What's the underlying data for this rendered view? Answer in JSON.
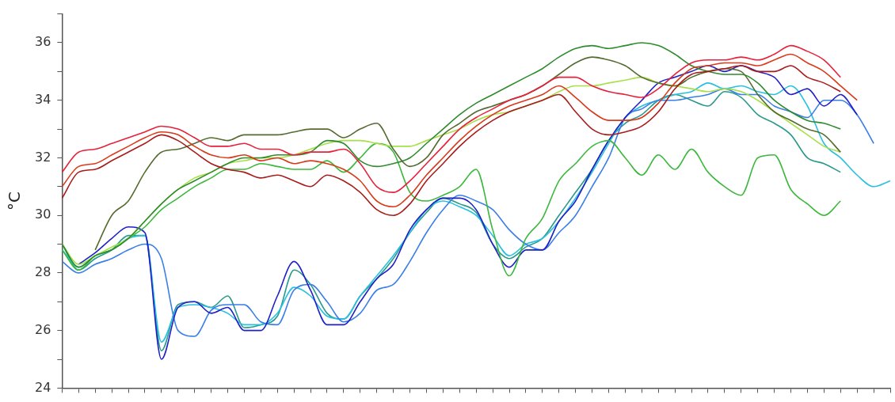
{
  "chart_data": {
    "type": "line",
    "ylabel": "°C",
    "categories": [
      null,
      null,
      null,
      null,
      null,
      null,
      null,
      null,
      null,
      null,
      null,
      null,
      null,
      null,
      null,
      null,
      null,
      null,
      null,
      null,
      null,
      null,
      null,
      null,
      null,
      null,
      null,
      null,
      null,
      null,
      null,
      null,
      null,
      null,
      null,
      null,
      null,
      null,
      null,
      null,
      null,
      null,
      null,
      null,
      null,
      null,
      null,
      null,
      null,
      null,
      null
    ],
    "ylim": [
      24,
      37
    ],
    "yticks": [
      24,
      {
        "value": 25,
        "label": null
      },
      26,
      {
        "value": 27,
        "label": null
      },
      28,
      {
        "value": 29,
        "label": null
      },
      30,
      {
        "value": 31,
        "label": null
      },
      32,
      {
        "value": 33,
        "label": null
      },
      34,
      {
        "value": 35,
        "label": null
      },
      36,
      {
        "value": 37,
        "label": null
      }
    ],
    "tick_labels": "y",
    "grid": false,
    "marker": "none",
    "series": [
      {
        "color": "#e8203a",
        "values": [
          31.5,
          32.2,
          32.3,
          32.5,
          32.7,
          32.9,
          33.1,
          33.0,
          32.7,
          32.4,
          32.4,
          32.5,
          32.3,
          32.3,
          32.1,
          32.2,
          32.2,
          32.3,
          31.8,
          31.0,
          30.8,
          31.2,
          31.8,
          32.4,
          33.0,
          33.4,
          33.7,
          34.0,
          34.2,
          34.5,
          34.8,
          34.8,
          34.5,
          34.3,
          34.2,
          34.1,
          34.4,
          34.9,
          35.3,
          35.4,
          35.4,
          35.5,
          35.4,
          35.6,
          35.9,
          35.7,
          35.4,
          34.8,
          null,
          null,
          null
        ]
      },
      {
        "color": "#d93a1a",
        "values": [
          31.0,
          31.7,
          31.8,
          32.1,
          32.4,
          32.7,
          32.9,
          32.8,
          32.4,
          32.1,
          32.0,
          32.1,
          31.9,
          32.0,
          31.8,
          31.9,
          31.8,
          31.6,
          31.2,
          30.5,
          30.3,
          30.7,
          31.4,
          32.0,
          32.6,
          33.1,
          33.5,
          33.8,
          34.0,
          34.2,
          34.5,
          34.1,
          33.6,
          33.3,
          33.3,
          33.4,
          33.9,
          34.6,
          35.1,
          35.2,
          35.3,
          35.3,
          35.2,
          35.4,
          35.6,
          35.3,
          35.0,
          34.5,
          34.0,
          null,
          null
        ]
      },
      {
        "color": "#a81c1c",
        "values": [
          30.6,
          31.5,
          31.6,
          31.9,
          32.2,
          32.5,
          32.8,
          32.6,
          32.2,
          31.8,
          31.6,
          31.5,
          31.3,
          31.4,
          31.2,
          31.0,
          31.4,
          31.2,
          30.8,
          30.2,
          30.0,
          30.4,
          31.2,
          31.8,
          32.4,
          32.9,
          33.3,
          33.6,
          33.8,
          34.0,
          34.2,
          33.6,
          33.0,
          32.8,
          32.9,
          33.1,
          33.6,
          34.4,
          34.9,
          35.0,
          35.1,
          35.2,
          35.0,
          35.0,
          35.2,
          34.8,
          34.6,
          34.3,
          null,
          null,
          null
        ]
      },
      {
        "color": "#556b2f",
        "values": [
          null,
          null,
          28.8,
          30.0,
          30.5,
          31.5,
          32.2,
          32.3,
          32.5,
          32.7,
          32.6,
          32.8,
          32.8,
          32.8,
          32.9,
          33.0,
          33.0,
          32.7,
          33.0,
          33.2,
          32.3,
          31.7,
          32.0,
          32.8,
          33.2,
          33.6,
          33.8,
          34.0,
          34.2,
          34.5,
          34.9,
          35.3,
          35.5,
          35.4,
          35.2,
          34.8,
          34.6,
          34.5,
          34.8,
          35.0,
          35.1,
          35.0,
          34.2,
          33.6,
          33.3,
          33.0,
          32.8,
          32.2,
          null,
          null,
          null
        ]
      },
      {
        "color": "#2e8b2e",
        "values": [
          29.0,
          28.2,
          28.6,
          28.8,
          29.2,
          29.8,
          30.4,
          30.9,
          31.2,
          31.5,
          31.8,
          32.0,
          32.0,
          32.1,
          32.1,
          32.2,
          32.6,
          32.5,
          31.9,
          31.7,
          31.8,
          32.0,
          32.5,
          33.0,
          33.5,
          33.9,
          34.2,
          34.5,
          34.8,
          35.1,
          35.5,
          35.8,
          35.9,
          35.8,
          35.9,
          36.0,
          35.9,
          35.6,
          35.2,
          35.0,
          34.9,
          34.9,
          34.6,
          34.0,
          33.6,
          33.3,
          33.2,
          33.0,
          null,
          null,
          null
        ]
      },
      {
        "color": "#a8e04a",
        "values": [
          29.0,
          28.3,
          28.6,
          28.9,
          29.2,
          29.8,
          30.4,
          30.9,
          31.3,
          31.5,
          31.8,
          31.9,
          32.0,
          32.0,
          32.1,
          32.3,
          32.5,
          32.6,
          32.6,
          32.5,
          32.4,
          32.4,
          32.6,
          32.8,
          33.0,
          33.3,
          33.5,
          33.6,
          33.8,
          34.0,
          34.3,
          34.5,
          34.5,
          34.6,
          34.7,
          34.8,
          34.6,
          34.5,
          34.4,
          34.3,
          34.4,
          34.3,
          34.0,
          33.6,
          33.2,
          32.8,
          32.4,
          32.2,
          null,
          null,
          null
        ]
      },
      {
        "color": "#3cb83c",
        "values": [
          28.8,
          28.1,
          28.6,
          28.8,
          29.2,
          29.6,
          30.2,
          30.6,
          31.0,
          31.3,
          31.6,
          31.6,
          31.8,
          31.7,
          31.6,
          31.6,
          31.9,
          31.5,
          32.0,
          32.5,
          32.2,
          30.8,
          30.5,
          30.7,
          31.0,
          31.6,
          29.5,
          27.9,
          29.2,
          29.9,
          31.2,
          31.8,
          32.4,
          32.6,
          32.0,
          31.4,
          32.1,
          31.6,
          32.3,
          31.5,
          31.0,
          30.7,
          32.0,
          32.1,
          30.9,
          30.4,
          30.0,
          30.5,
          null,
          null,
          null
        ]
      },
      {
        "color": "#2020c8",
        "values": [
          null,
          28.3,
          28.7,
          29.2,
          29.6,
          29.4,
          25.0,
          26.8,
          27.0,
          26.6,
          26.8,
          26.0,
          26.0,
          27.2,
          28.4,
          27.4,
          26.2,
          26.2,
          27.0,
          27.8,
          28.3,
          29.5,
          30.2,
          30.6,
          30.6,
          30.2,
          29.0,
          28.2,
          28.8,
          28.8,
          29.8,
          30.5,
          31.6,
          32.6,
          33.4,
          34.0,
          34.6,
          34.8,
          35.0,
          35.2,
          35.0,
          35.2,
          35.0,
          34.8,
          34.2,
          34.4,
          33.8,
          34.2,
          33.5,
          null,
          null
        ]
      },
      {
        "color": "#3a7ee8",
        "values": [
          28.4,
          28.0,
          28.3,
          28.5,
          28.8,
          29.0,
          28.5,
          26.0,
          25.8,
          26.7,
          26.9,
          26.9,
          26.3,
          26.2,
          27.4,
          27.6,
          27.0,
          26.3,
          26.6,
          27.4,
          27.6,
          28.4,
          29.4,
          30.2,
          30.7,
          30.5,
          30.2,
          29.5,
          29.0,
          28.8,
          29.4,
          30.0,
          31.0,
          32.0,
          33.4,
          33.7,
          34.0,
          34.0,
          34.1,
          34.2,
          34.4,
          34.2,
          34.2,
          33.8,
          33.6,
          33.4,
          34.0,
          34.0,
          33.5,
          32.5,
          null
        ]
      },
      {
        "color": "#28c0e0",
        "values": [
          28.8,
          28.2,
          28.6,
          28.8,
          29.2,
          29.3,
          25.6,
          26.8,
          26.9,
          26.8,
          26.6,
          26.2,
          26.2,
          26.6,
          27.5,
          27.2,
          26.5,
          26.4,
          27.2,
          27.9,
          28.6,
          29.4,
          30.2,
          30.5,
          30.3,
          30.0,
          29.3,
          28.6,
          29.0,
          29.2,
          29.8,
          30.6,
          31.5,
          32.5,
          33.4,
          33.8,
          34.0,
          34.2,
          34.3,
          34.6,
          34.4,
          34.5,
          34.3,
          34.2,
          34.5,
          33.8,
          32.5,
          32.0,
          31.4,
          31.0,
          31.2
        ]
      },
      {
        "color": "#2a9a8a",
        "values": [
          29.0,
          28.1,
          28.5,
          28.8,
          29.3,
          29.3,
          25.3,
          26.9,
          27.0,
          26.8,
          27.2,
          26.1,
          26.2,
          26.5,
          28.1,
          27.6,
          26.6,
          26.4,
          27.2,
          27.8,
          28.5,
          29.4,
          30.1,
          30.6,
          30.4,
          30.1,
          29.0,
          28.5,
          28.9,
          29.2,
          30.0,
          30.8,
          31.6,
          32.6,
          33.2,
          33.5,
          34.0,
          34.2,
          34.0,
          33.8,
          34.3,
          34.1,
          33.5,
          33.2,
          32.8,
          32.0,
          31.8,
          31.5,
          null,
          null,
          null
        ]
      }
    ]
  }
}
